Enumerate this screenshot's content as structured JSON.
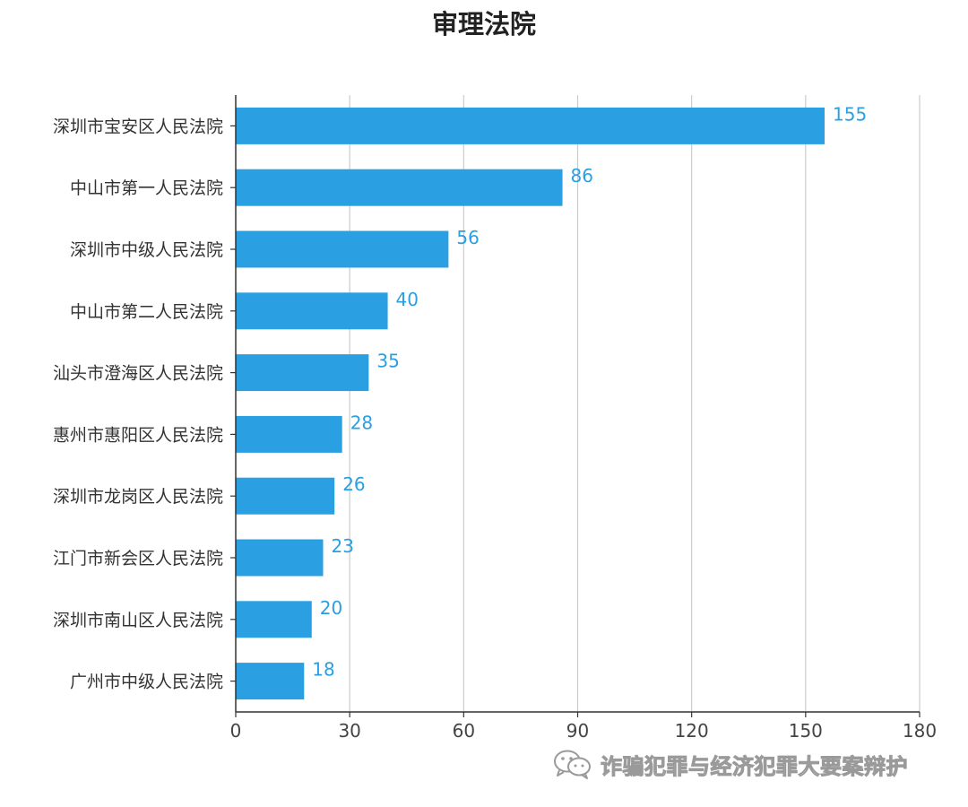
{
  "chart_data": {
    "type": "bar",
    "orientation": "horizontal",
    "title": "审理法院",
    "categories": [
      "深圳市宝安区人民法院",
      "中山市第一人民法院",
      "深圳市中级人民法院",
      "中山市第二人民法院",
      "汕头市澄海区人民法院",
      "惠州市惠阳区人民法院",
      "深圳市龙岗区人民法院",
      "江门市新会区人民法院",
      "深圳市南山区人民法院",
      "广州市中级人民法院"
    ],
    "values": [
      155,
      86,
      56,
      40,
      35,
      28,
      26,
      23,
      20,
      18
    ],
    "xlabel": "",
    "ylabel": "",
    "xlim": [
      0,
      180
    ],
    "xticks": [
      0,
      30,
      60,
      90,
      120,
      150,
      180
    ],
    "grid": "vertical",
    "show_data_labels": true,
    "bar_color": "#2a9fe2",
    "label_color": "#2a9fe2"
  },
  "watermark": {
    "text": "诈骗犯罪与经济犯罪大要案辩护",
    "icon": "wechat-icon"
  }
}
